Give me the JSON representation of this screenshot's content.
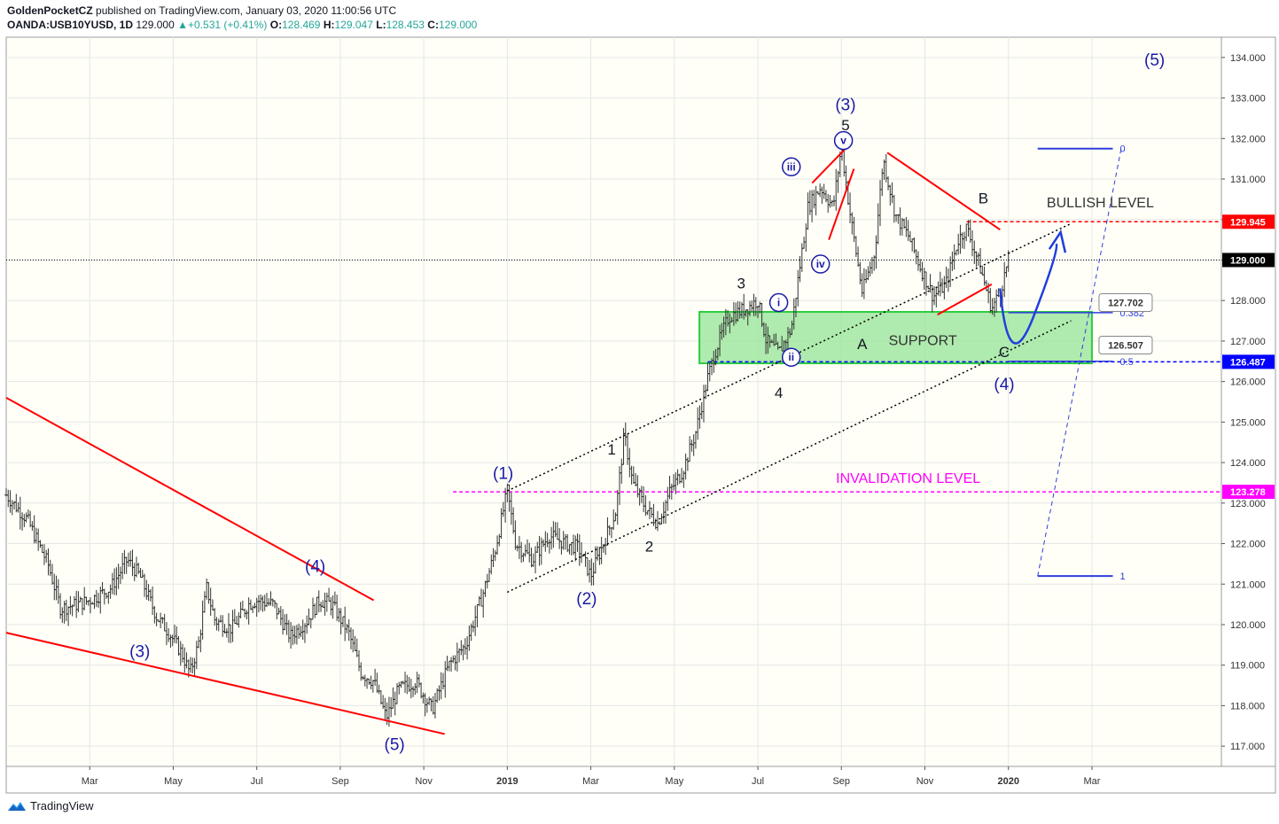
{
  "header": {
    "author": "GoldenPocketCZ",
    "published": "published on TradingView.com, January 03, 2020 11:00:56 UTC",
    "symbol": "OANDA:USB10YUSD, 1D",
    "last": "129.000",
    "change": "+0.531 (+0.41%)",
    "o_label": "O:",
    "o": "128.469",
    "h_label": "H:",
    "h": "129.047",
    "l_label": "L:",
    "l": "128.453",
    "c_label": "C:",
    "c": "129.000"
  },
  "footer": {
    "brand": "TradingView"
  },
  "colors": {
    "background": "#fffff8",
    "grid": "#e6e6e6",
    "bars": "#333333",
    "wave_blue": "#1a1aa6",
    "wave_black": "#131722",
    "red_line": "#ff0000",
    "support_fill": "#9be59b",
    "support_border": "#2ecc40",
    "magenta": "#ff00ff",
    "fib_blue": "#2f3ddc"
  },
  "chart_data": {
    "type": "ohlc",
    "title": "",
    "ylim": [
      116.5,
      134.5
    ],
    "yticks": [
      "117.000",
      "118.000",
      "119.000",
      "120.000",
      "121.000",
      "122.000",
      "123.000",
      "124.000",
      "125.000",
      "126.000",
      "127.000",
      "128.000",
      "129.000",
      "130.000",
      "131.000",
      "132.000",
      "133.000",
      "134.000"
    ],
    "xlim": [
      0,
      29.1
    ],
    "xticks": [
      {
        "x": 2,
        "label": "Mar"
      },
      {
        "x": 4,
        "label": "May"
      },
      {
        "x": 6,
        "label": "Jul"
      },
      {
        "x": 8,
        "label": "Sep"
      },
      {
        "x": 10,
        "label": "Nov"
      },
      {
        "x": 12,
        "label": "2019"
      },
      {
        "x": 14,
        "label": "Mar"
      },
      {
        "x": 16,
        "label": "May"
      },
      {
        "x": 18,
        "label": "Jul"
      },
      {
        "x": 20,
        "label": "Sep"
      },
      {
        "x": 22,
        "label": "Nov"
      },
      {
        "x": 24,
        "label": "2020"
      },
      {
        "x": 26,
        "label": "Mar"
      }
    ],
    "price_path": [
      [
        0.0,
        123.2
      ],
      [
        0.5,
        122.6
      ],
      [
        1.0,
        121.5
      ],
      [
        1.3,
        120.4
      ],
      [
        1.7,
        120.5
      ],
      [
        2.0,
        120.6
      ],
      [
        2.5,
        120.9
      ],
      [
        2.9,
        121.6
      ],
      [
        3.2,
        121.2
      ],
      [
        3.6,
        120.2
      ],
      [
        3.9,
        119.8
      ],
      [
        4.2,
        119.3
      ],
      [
        4.4,
        118.8
      ],
      [
        4.6,
        119.5
      ],
      [
        4.8,
        120.9
      ],
      [
        5.0,
        120.1
      ],
      [
        5.4,
        119.9
      ],
      [
        5.8,
        120.5
      ],
      [
        6.0,
        120.6
      ],
      [
        6.4,
        120.5
      ],
      [
        6.8,
        119.7
      ],
      [
        7.2,
        120.1
      ],
      [
        7.5,
        120.6
      ],
      [
        7.8,
        120.5
      ],
      [
        8.2,
        119.8
      ],
      [
        8.5,
        118.8
      ],
      [
        8.8,
        118.6
      ],
      [
        9.1,
        117.7
      ],
      [
        9.4,
        118.4
      ],
      [
        9.8,
        118.6
      ],
      [
        10.2,
        117.9
      ],
      [
        10.6,
        119.0
      ],
      [
        11.0,
        119.5
      ],
      [
        11.4,
        120.7
      ],
      [
        11.7,
        121.8
      ],
      [
        12.0,
        123.3
      ],
      [
        12.2,
        122.0
      ],
      [
        12.6,
        121.6
      ],
      [
        13.0,
        122.2
      ],
      [
        13.4,
        122.0
      ],
      [
        13.7,
        121.9
      ],
      [
        14.0,
        121.2
      ],
      [
        14.3,
        122.0
      ],
      [
        14.6,
        122.8
      ],
      [
        14.8,
        124.7
      ],
      [
        15.0,
        123.5
      ],
      [
        15.3,
        122.9
      ],
      [
        15.6,
        122.5
      ],
      [
        15.9,
        123.3
      ],
      [
        16.2,
        123.8
      ],
      [
        16.5,
        124.7
      ],
      [
        16.8,
        126.1
      ],
      [
        17.0,
        126.8
      ],
      [
        17.3,
        127.6
      ],
      [
        17.7,
        127.8
      ],
      [
        18.0,
        128.0
      ],
      [
        18.2,
        127.0
      ],
      [
        18.5,
        126.7
      ],
      [
        18.8,
        127.3
      ],
      [
        19.0,
        128.8
      ],
      [
        19.2,
        130.3
      ],
      [
        19.5,
        130.8
      ],
      [
        19.8,
        130.3
      ],
      [
        20.0,
        131.8
      ],
      [
        20.2,
        130.2
      ],
      [
        20.5,
        128.2
      ],
      [
        20.8,
        129.2
      ],
      [
        21.0,
        131.5
      ],
      [
        21.3,
        130.1
      ],
      [
        21.6,
        129.6
      ],
      [
        21.9,
        128.8
      ],
      [
        22.2,
        128.1
      ],
      [
        22.5,
        128.4
      ],
      [
        22.8,
        129.5
      ],
      [
        23.0,
        129.8
      ],
      [
        23.3,
        128.9
      ],
      [
        23.6,
        127.8
      ],
      [
        23.8,
        128.2
      ],
      [
        24.0,
        129.0
      ]
    ],
    "price_lines": [
      {
        "price": 129.945,
        "label": "129.945",
        "color": "#ff0000",
        "style": "dashed"
      },
      {
        "price": 129.0,
        "label": "129.000",
        "color": "#000000",
        "style": "dotted"
      },
      {
        "price": 126.487,
        "label": "126.487",
        "color": "#0000ff",
        "style": "dashed"
      },
      {
        "price": 123.278,
        "label": "123.278",
        "color": "#ff00ff",
        "style": "dashed"
      }
    ],
    "fib_levels": [
      {
        "ratio": "0",
        "price": 131.75
      },
      {
        "ratio": "0.382",
        "price": 127.7
      },
      {
        "ratio": "0.5",
        "price": 126.5
      },
      {
        "ratio": "1",
        "price": 121.2
      }
    ],
    "callouts": [
      "127.702",
      "126.507"
    ],
    "zones": [
      {
        "name": "support",
        "label": "SUPPORT",
        "x0": 16.6,
        "x1": 26.0,
        "y0": 126.45,
        "y1": 127.72
      }
    ],
    "text_labels": [
      {
        "text": "BULLISH LEVEL",
        "x": 26.2,
        "y": 130.3,
        "color": "#333333",
        "size": 16
      },
      {
        "text": "INVALIDATION LEVEL",
        "x": 21.6,
        "y": 123.5,
        "color": "#ff00ff",
        "size": 16
      }
    ],
    "wave_labels": [
      {
        "text": "(5)",
        "x": 27.5,
        "y": 133.8,
        "color": "blue",
        "size": 19
      },
      {
        "text": "(3)",
        "x": 20.1,
        "y": 132.7,
        "color": "blue",
        "size": 19
      },
      {
        "text": "5",
        "x": 20.1,
        "y": 132.2,
        "color": "black",
        "size": 17
      },
      {
        "text": "B",
        "x": 23.4,
        "y": 130.4,
        "color": "black",
        "size": 17
      },
      {
        "text": "3",
        "x": 17.6,
        "y": 128.3,
        "color": "black",
        "size": 17
      },
      {
        "text": "A",
        "x": 20.5,
        "y": 126.8,
        "color": "black",
        "size": 17
      },
      {
        "text": "C",
        "x": 23.9,
        "y": 126.6,
        "color": "black",
        "size": 17
      },
      {
        "text": "(4)",
        "x": 23.9,
        "y": 125.8,
        "color": "blue",
        "size": 19
      },
      {
        "text": "4",
        "x": 18.5,
        "y": 125.6,
        "color": "black",
        "size": 17
      },
      {
        "text": "1",
        "x": 14.5,
        "y": 124.2,
        "color": "black",
        "size": 17
      },
      {
        "text": "(1)",
        "x": 11.9,
        "y": 123.6,
        "color": "blue",
        "size": 19
      },
      {
        "text": "2",
        "x": 15.4,
        "y": 121.8,
        "color": "black",
        "size": 17
      },
      {
        "text": "(2)",
        "x": 13.9,
        "y": 120.5,
        "color": "blue",
        "size": 19
      },
      {
        "text": "(4)",
        "x": 7.4,
        "y": 121.3,
        "color": "blue",
        "size": 19
      },
      {
        "text": "(3)",
        "x": 3.2,
        "y": 119.2,
        "color": "blue",
        "size": 19
      },
      {
        "text": "(5)",
        "x": 9.3,
        "y": 116.9,
        "color": "blue",
        "size": 19
      }
    ],
    "circle_labels": [
      {
        "text": "v",
        "x": 20.05,
        "y": 131.95
      },
      {
        "text": "iii",
        "x": 18.8,
        "y": 131.3
      },
      {
        "text": "iv",
        "x": 19.5,
        "y": 128.9
      },
      {
        "text": "i",
        "x": 18.5,
        "y": 127.95
      },
      {
        "text": "ii",
        "x": 18.8,
        "y": 126.6
      }
    ]
  }
}
